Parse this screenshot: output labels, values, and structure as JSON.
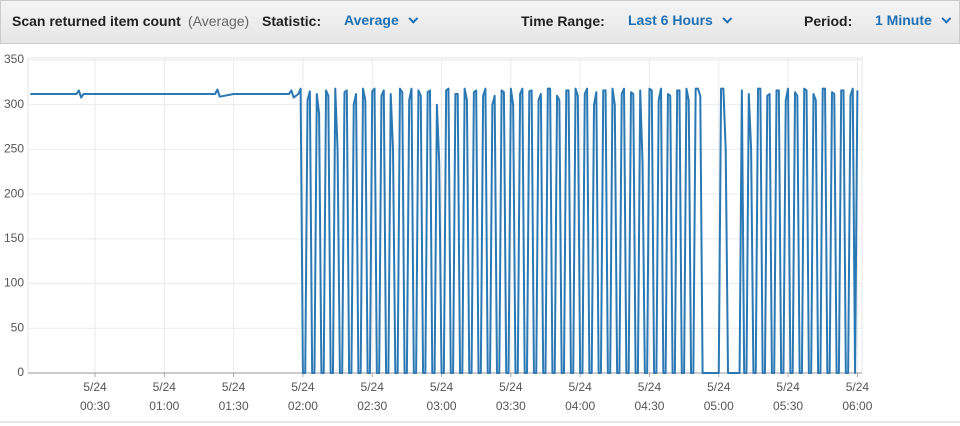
{
  "header": {
    "metric": "Scan returned item count",
    "metric_stat": "(Average)",
    "statistic_label": "Statistic:",
    "statistic": "Average",
    "time_range_label": "Time Range:",
    "time_range": "Last 6 Hours",
    "period_label": "Period:",
    "period": "1 Minute"
  },
  "chart_data": {
    "type": "line",
    "color": "#2a78b4",
    "grid": true,
    "xlim": [
      1,
      362
    ],
    "ylim": [
      0,
      350
    ],
    "yticks": [
      0,
      50,
      100,
      150,
      200,
      250,
      300,
      350
    ],
    "xticks": [
      {
        "value": 30,
        "label": "5/24 00:30"
      },
      {
        "value": 60,
        "label": "5/24 01:00"
      },
      {
        "value": 90,
        "label": "5/24 01:30"
      },
      {
        "value": 120,
        "label": "5/24 02:00"
      },
      {
        "value": 150,
        "label": "5/24 02:30"
      },
      {
        "value": 180,
        "label": "5/24 03:00"
      },
      {
        "value": 210,
        "label": "5/24 03:30"
      },
      {
        "value": 240,
        "label": "5/24 04:00"
      },
      {
        "value": 270,
        "label": "5/24 04:30"
      },
      {
        "value": 300,
        "label": "5/24 05:00"
      },
      {
        "value": 330,
        "label": "5/24 05:30"
      },
      {
        "value": 360,
        "label": "5/24 06:00"
      }
    ],
    "x": [
      2,
      10,
      20,
      22,
      23,
      24,
      25,
      30,
      40,
      50,
      60,
      70,
      80,
      82,
      83,
      84,
      90,
      100,
      110,
      114,
      115,
      116,
      118,
      119,
      120,
      121,
      122,
      123,
      124,
      125,
      126,
      127,
      128,
      129,
      130,
      131,
      132,
      133,
      134,
      135,
      136,
      137,
      138,
      139,
      140,
      141,
      142,
      143,
      144,
      145,
      146,
      147,
      148,
      149,
      150,
      151,
      152,
      153,
      154,
      155,
      156,
      157,
      158,
      159,
      160,
      161,
      162,
      163,
      164,
      165,
      166,
      167,
      168,
      169,
      170,
      171,
      172,
      173,
      174,
      175,
      176,
      177,
      178,
      179,
      180,
      181,
      182,
      183,
      184,
      185,
      186,
      187,
      188,
      189,
      190,
      191,
      192,
      193,
      194,
      195,
      196,
      197,
      198,
      199,
      200,
      201,
      202,
      203,
      204,
      205,
      206,
      207,
      208,
      209,
      210,
      211,
      212,
      213,
      214,
      215,
      216,
      217,
      218,
      219,
      220,
      221,
      222,
      223,
      224,
      225,
      226,
      227,
      228,
      229,
      230,
      231,
      232,
      233,
      234,
      235,
      236,
      237,
      238,
      239,
      240,
      241,
      242,
      243,
      244,
      245,
      246,
      247,
      248,
      249,
      250,
      251,
      252,
      253,
      254,
      255,
      256,
      257,
      258,
      259,
      260,
      261,
      262,
      263,
      264,
      265,
      266,
      267,
      268,
      269,
      270,
      271,
      272,
      273,
      274,
      275,
      276,
      277,
      278,
      279,
      280,
      281,
      282,
      283,
      284,
      285,
      286,
      287,
      288,
      289,
      290,
      291,
      292,
      293,
      300,
      301,
      302,
      303,
      304,
      309,
      310,
      311,
      312,
      313,
      314,
      315,
      316,
      317,
      318,
      319,
      320,
      321,
      322,
      323,
      324,
      325,
      326,
      327,
      328,
      329,
      330,
      331,
      332,
      333,
      334,
      335,
      336,
      337,
      338,
      339,
      340,
      341,
      342,
      343,
      344,
      345,
      346,
      347,
      348,
      349,
      350,
      351,
      352,
      353,
      354,
      355,
      356,
      357,
      358,
      359,
      360
    ],
    "values": [
      312,
      312,
      312,
      312,
      316,
      308,
      312,
      312,
      312,
      312,
      312,
      312,
      312,
      312,
      317,
      309,
      312,
      312,
      312,
      312,
      316,
      308,
      312,
      318,
      0,
      0,
      305,
      315,
      0,
      0,
      312,
      290,
      0,
      0,
      316,
      310,
      0,
      0,
      318,
      250,
      0,
      0,
      314,
      316,
      0,
      0,
      300,
      312,
      0,
      0,
      318,
      305,
      0,
      0,
      315,
      318,
      0,
      0,
      310,
      316,
      0,
      0,
      312,
      250,
      0,
      0,
      318,
      314,
      0,
      0,
      305,
      318,
      0,
      0,
      316,
      310,
      0,
      0,
      314,
      316,
      0,
      0,
      300,
      235,
      0,
      0,
      316,
      318,
      0,
      0,
      312,
      312,
      0,
      0,
      318,
      305,
      0,
      0,
      314,
      316,
      0,
      0,
      310,
      318,
      0,
      0,
      300,
      310,
      0,
      0,
      316,
      314,
      0,
      0,
      318,
      300,
      0,
      0,
      312,
      318,
      0,
      0,
      315,
      316,
      0,
      0,
      305,
      312,
      0,
      0,
      318,
      318,
      0,
      0,
      310,
      305,
      0,
      0,
      316,
      316,
      0,
      0,
      318,
      310,
      0,
      0,
      312,
      318,
      0,
      0,
      300,
      314,
      0,
      0,
      316,
      316,
      0,
      0,
      318,
      300,
      0,
      0,
      312,
      318,
      0,
      0,
      314,
      312,
      0,
      0,
      316,
      235,
      0,
      0,
      318,
      316,
      0,
      0,
      305,
      318,
      0,
      0,
      312,
      310,
      0,
      0,
      316,
      316,
      0,
      0,
      318,
      305,
      0,
      0,
      318,
      318,
      310,
      0,
      0,
      318,
      318,
      250,
      0,
      0,
      316,
      0,
      0,
      312,
      250,
      0,
      0,
      318,
      318,
      0,
      0,
      310,
      312,
      0,
      0,
      316,
      316,
      0,
      0,
      305,
      318,
      0,
      0,
      314,
      310,
      0,
      0,
      318,
      316,
      0,
      0,
      312,
      305,
      0,
      0,
      318,
      318,
      0,
      0,
      314,
      312,
      0,
      0,
      316,
      316,
      0,
      0,
      310,
      318,
      0,
      316
    ]
  }
}
